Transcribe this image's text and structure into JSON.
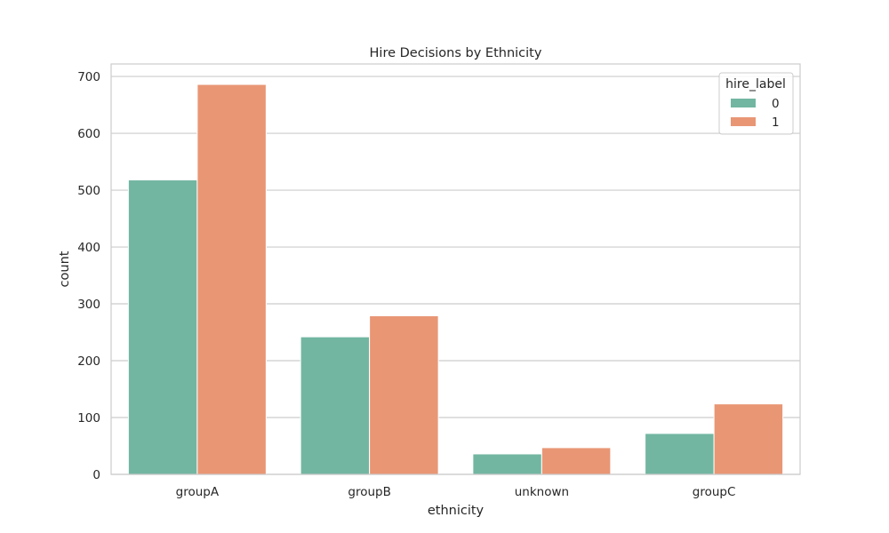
{
  "chart_data": {
    "type": "bar",
    "title": "Hire Decisions by Ethnicity",
    "xlabel": "ethnicity",
    "ylabel": "count",
    "categories": [
      "groupA",
      "groupB",
      "unknown",
      "groupC"
    ],
    "series": [
      {
        "name": "0",
        "values": [
          518,
          242,
          36,
          72
        ],
        "color": "#72b6a1"
      },
      {
        "name": "1",
        "values": [
          686,
          279,
          47,
          124
        ],
        "color": "#e99675"
      }
    ],
    "ylim": [
      0,
      722
    ],
    "yticks": [
      0,
      100,
      200,
      300,
      400,
      500,
      600,
      700
    ],
    "grid": true,
    "legend": {
      "title": "hire_label",
      "position": "top-right"
    }
  }
}
